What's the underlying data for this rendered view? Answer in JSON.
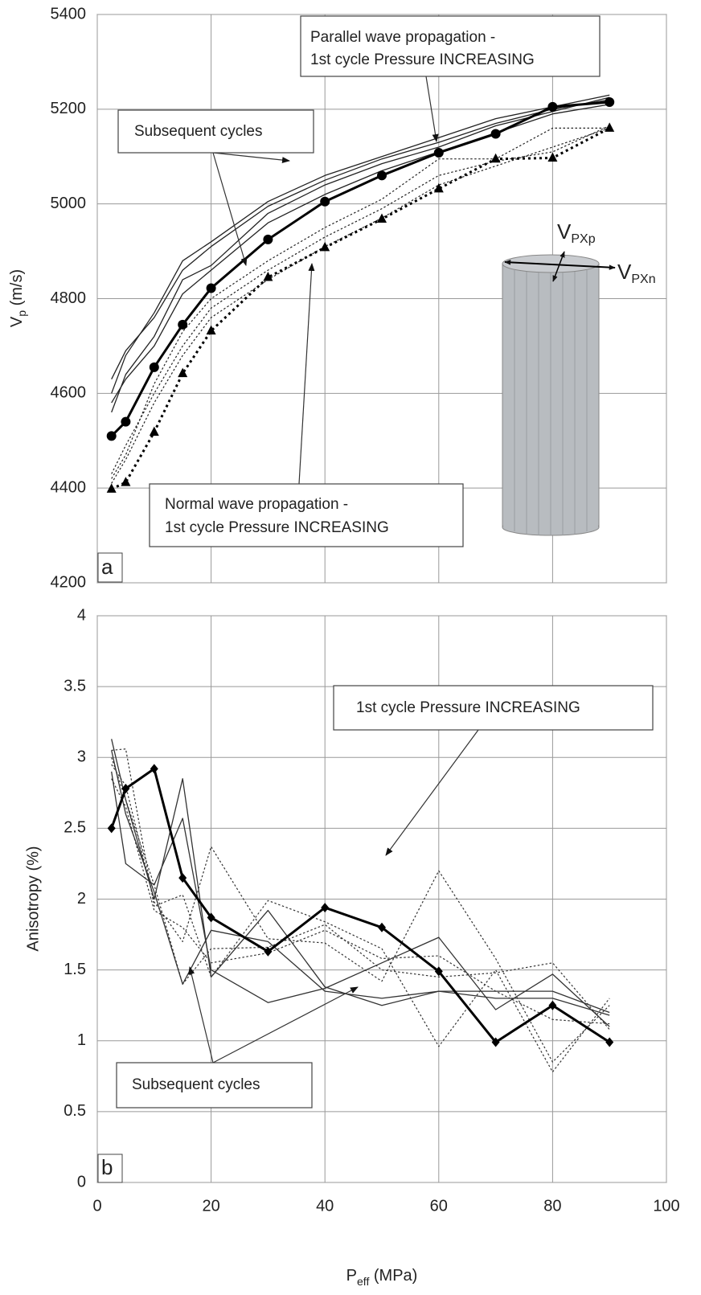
{
  "chart_data": [
    {
      "type": "line",
      "ylabel": {
        "main": "V",
        "sub": "p",
        "rest": " (m/s)"
      },
      "panel_label": "a",
      "x": [
        2.5,
        5,
        10,
        15,
        20,
        30,
        40,
        50,
        60,
        70,
        80,
        90
      ],
      "xlim": [
        0,
        100
      ],
      "xticks": [
        0,
        20,
        40,
        60,
        80,
        100
      ],
      "show_xtick_labels": false,
      "ylim": [
        4200,
        5400
      ],
      "yticks": [
        4200,
        4400,
        4600,
        4800,
        5000,
        5200,
        5400
      ],
      "grid": true,
      "series": [
        {
          "color": "#222222",
          "style": "solid",
          "width": 1.3,
          "marker": "none",
          "values": [
            4600,
            4680,
            4770,
            4880,
            4920,
            5005,
            5060,
            5100,
            5140,
            5180,
            5205,
            5230
          ]
        },
        {
          "color": "#222222",
          "style": "solid",
          "width": 1.3,
          "marker": "none",
          "values": [
            4630,
            4690,
            4760,
            4860,
            4910,
            4995,
            5050,
            5095,
            5130,
            5170,
            5200,
            5220
          ]
        },
        {
          "color": "#222222",
          "style": "solid",
          "width": 1.3,
          "marker": "none",
          "values": [
            4560,
            4640,
            4720,
            4840,
            4870,
            4980,
            5040,
            5085,
            5120,
            5165,
            5195,
            5225
          ]
        },
        {
          "color": "#222222",
          "style": "solid",
          "width": 1.3,
          "marker": "none",
          "values": [
            4580,
            4630,
            4700,
            4810,
            4860,
            4960,
            5020,
            5070,
            5110,
            5150,
            5190,
            5210
          ]
        },
        {
          "color": "#222222",
          "style": "dotted",
          "width": 1.2,
          "marker": "none",
          "values": [
            4420,
            4470,
            4620,
            4730,
            4800,
            4880,
            4950,
            5010,
            5095,
            5095,
            5160,
            5160
          ]
        },
        {
          "color": "#222222",
          "style": "dotted",
          "width": 1.2,
          "marker": "none",
          "values": [
            4430,
            4490,
            4600,
            4700,
            4780,
            4860,
            4930,
            4990,
            5060,
            5090,
            5110,
            5165
          ]
        },
        {
          "color": "#222222",
          "style": "dotted",
          "width": 1.2,
          "marker": "none",
          "values": [
            4410,
            4460,
            4580,
            4680,
            4760,
            4840,
            4910,
            4970,
            5040,
            5080,
            5120,
            5160
          ]
        },
        {
          "color": "#000000",
          "style": "solid",
          "width": 3,
          "marker": "circle",
          "values": [
            4510,
            4540,
            4655,
            4745,
            4822,
            4925,
            5005,
            5060,
            5108,
            5148,
            5205,
            5215
          ]
        },
        {
          "color": "#000000",
          "style": "dotted",
          "width": 3,
          "marker": "triangle",
          "values": [
            4398,
            4412,
            4518,
            4642,
            4732,
            4845,
            4908,
            4968,
            5032,
            5095,
            5097,
            5160
          ]
        }
      ],
      "annotations": [
        [
          "Parallel wave propagation -",
          "1st cycle Pressure INCREASING"
        ],
        [
          "Subsequent cycles"
        ],
        [
          "Normal wave propagation -",
          "1st cycle Pressure INCREASING"
        ]
      ],
      "cylinder_labels": [
        {
          "main": "V",
          "sub": "PXp"
        },
        {
          "main": "V",
          "sub": "PXn"
        }
      ]
    },
    {
      "type": "line",
      "ylabel": "Anisotropy (%)",
      "xlabel": {
        "main": "P",
        "sub": "eff",
        "rest": " (MPa)"
      },
      "panel_label": "b",
      "x": [
        2.5,
        5,
        10,
        15,
        20,
        30,
        40,
        50,
        60,
        70,
        80,
        90
      ],
      "xlim": [
        0,
        100
      ],
      "xticks": [
        0,
        20,
        40,
        60,
        80,
        100
      ],
      "show_xtick_labels": true,
      "ylim": [
        0,
        4
      ],
      "yticks": [
        0,
        0.5,
        1,
        1.5,
        2,
        2.5,
        3,
        3.5,
        4
      ],
      "grid": true,
      "series": [
        {
          "color": "#333333",
          "style": "solid",
          "width": 1.3,
          "marker": "none",
          "values": [
            3.13,
            2.7,
            2.0,
            2.85,
            1.45,
            1.92,
            1.38,
            1.25,
            1.35,
            1.35,
            1.35,
            1.2
          ]
        },
        {
          "color": "#333333",
          "style": "solid",
          "width": 1.3,
          "marker": "none",
          "values": [
            2.9,
            2.25,
            2.1,
            2.57,
            1.5,
            1.27,
            1.37,
            1.55,
            1.73,
            1.22,
            1.47,
            1.1
          ]
        },
        {
          "color": "#333333",
          "style": "solid",
          "width": 1.3,
          "marker": "none",
          "values": [
            3.05,
            2.6,
            2.05,
            1.4,
            1.78,
            1.7,
            1.35,
            1.3,
            1.35,
            1.3,
            1.3,
            1.18
          ]
        },
        {
          "color": "#333333",
          "style": "dotted",
          "width": 1.2,
          "marker": "none",
          "values": [
            3.05,
            3.06,
            1.95,
            2.03,
            1.45,
            1.99,
            1.84,
            1.65,
            0.96,
            1.5,
            0.78,
            1.3
          ]
        },
        {
          "color": "#333333",
          "style": "dotted",
          "width": 1.2,
          "marker": "none",
          "values": [
            2.95,
            2.8,
            1.98,
            1.7,
            2.37,
            1.72,
            1.69,
            1.42,
            2.2,
            1.58,
            0.85,
            1.25
          ]
        },
        {
          "color": "#333333",
          "style": "dotted",
          "width": 1.2,
          "marker": "none",
          "values": [
            3.0,
            2.7,
            2.1,
            1.4,
            1.65,
            1.66,
            1.82,
            1.5,
            1.45,
            1.48,
            1.55,
            1.08
          ]
        },
        {
          "color": "#333333",
          "style": "dotted",
          "width": 1.2,
          "marker": "none",
          "values": [
            2.85,
            2.65,
            1.92,
            1.8,
            1.55,
            1.62,
            1.78,
            1.58,
            1.6,
            1.35,
            1.15,
            1.12
          ]
        },
        {
          "color": "#000000",
          "style": "solid",
          "width": 3,
          "marker": "diamond",
          "values": [
            2.5,
            2.78,
            2.92,
            2.15,
            1.87,
            1.63,
            1.94,
            1.8,
            1.49,
            0.99,
            1.25,
            0.99
          ]
        }
      ],
      "annotations": [
        [
          "1st cycle Pressure INCREASING"
        ],
        [
          "Subsequent cycles"
        ]
      ]
    }
  ]
}
